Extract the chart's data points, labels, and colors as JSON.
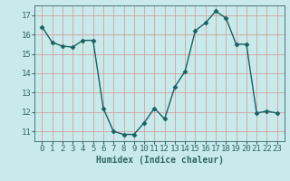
{
  "x": [
    0,
    1,
    2,
    3,
    4,
    5,
    6,
    7,
    8,
    9,
    10,
    11,
    12,
    13,
    14,
    15,
    16,
    17,
    18,
    19,
    20,
    21,
    22,
    23
  ],
  "y": [
    16.4,
    15.6,
    15.4,
    15.35,
    15.7,
    15.7,
    12.2,
    11.0,
    10.85,
    10.85,
    11.45,
    12.2,
    11.65,
    13.3,
    14.1,
    16.2,
    16.6,
    17.2,
    16.85,
    15.5,
    15.5,
    11.95,
    12.05,
    11.95
  ],
  "line_color": "#1a6060",
  "marker": "D",
  "markersize": 2.5,
  "linewidth": 1.0,
  "bg_color": "#c8eaea",
  "grid_color_major": "#d4a0a0",
  "grid_color_minor": "#d4a0a0",
  "xlabel": "Humidex (Indice chaleur)",
  "xlabel_fontsize": 7,
  "tick_fontsize": 6.5,
  "tick_color": "#336666",
  "ylim": [
    10.5,
    17.5
  ],
  "yticks": [
    11,
    12,
    13,
    14,
    15,
    16,
    17
  ],
  "xticks": [
    0,
    1,
    2,
    3,
    4,
    5,
    6,
    7,
    8,
    9,
    10,
    11,
    12,
    13,
    14,
    15,
    16,
    17,
    18,
    19,
    20,
    21,
    22,
    23
  ]
}
